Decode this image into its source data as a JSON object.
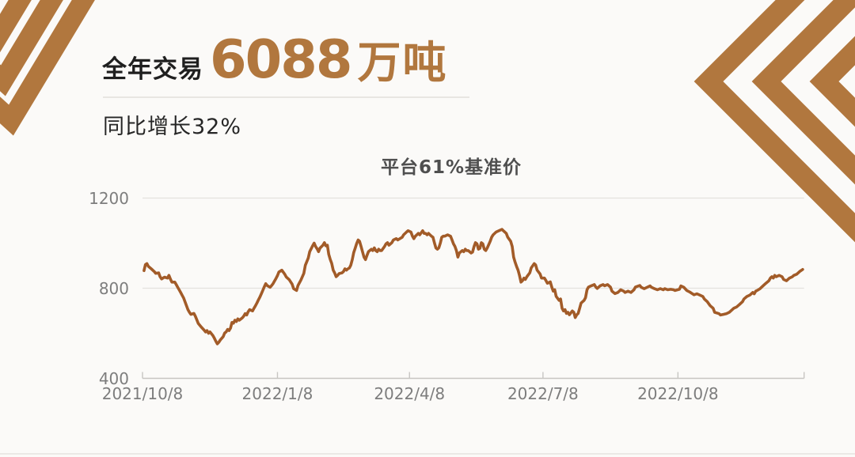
{
  "theme": {
    "accent_brown": "#b1773e",
    "line_brown": "#a25b28",
    "background": "#fbfaf8",
    "grid_color": "#e4e2de",
    "axis_color": "#c7c5c2",
    "tick_label_color": "#7d7d7d",
    "title_color": "#4f4f4f",
    "text_dark": "#1f1f1f"
  },
  "header": {
    "prefix": "全年交易",
    "big_number": "6088",
    "unit": "万吨",
    "subtitle": "同比增长32%"
  },
  "chart_data": {
    "type": "line",
    "title": "平台61%基准价",
    "x_unit": "days since 2021/10/8",
    "x_tick_labels": [
      "2021/10/8",
      "2022/1/8",
      "2022/4/8",
      "2022/7/8",
      "2022/10/8"
    ],
    "x_tick_days": [
      0,
      92,
      182,
      273,
      365
    ],
    "xlim_days": [
      0,
      451
    ],
    "y_ticks": [
      400,
      800,
      1200
    ],
    "ylim": [
      400,
      1200
    ],
    "grid": "horizontal",
    "legend": "none",
    "points": [
      [
        1,
        878
      ],
      [
        2,
        905
      ],
      [
        3,
        909
      ],
      [
        4,
        897
      ],
      [
        6,
        886
      ],
      [
        8,
        874
      ],
      [
        9,
        866
      ],
      [
        11,
        868
      ],
      [
        12,
        851
      ],
      [
        13,
        841
      ],
      [
        15,
        849
      ],
      [
        17,
        845
      ],
      [
        18,
        857
      ],
      [
        19,
        841
      ],
      [
        20,
        827
      ],
      [
        22,
        827
      ],
      [
        23,
        816
      ],
      [
        24,
        804
      ],
      [
        25,
        793
      ],
      [
        26,
        781
      ],
      [
        27,
        769
      ],
      [
        28,
        757
      ],
      [
        29,
        740
      ],
      [
        30,
        722
      ],
      [
        31,
        705
      ],
      [
        32,
        693
      ],
      [
        33,
        684
      ],
      [
        35,
        688
      ],
      [
        36,
        676
      ],
      [
        37,
        660
      ],
      [
        38,
        644
      ],
      [
        40,
        628
      ],
      [
        42,
        614
      ],
      [
        43,
        606
      ],
      [
        44,
        612
      ],
      [
        45,
        600
      ],
      [
        46,
        606
      ],
      [
        48,
        590
      ],
      [
        49,
        578
      ],
      [
        50,
        565
      ],
      [
        51,
        553
      ],
      [
        52,
        560
      ],
      [
        53,
        570
      ],
      [
        55,
        585
      ],
      [
        56,
        601
      ],
      [
        57,
        606
      ],
      [
        58,
        617
      ],
      [
        59,
        612
      ],
      [
        60,
        623
      ],
      [
        61,
        648
      ],
      [
        62,
        645
      ],
      [
        63,
        658
      ],
      [
        64,
        652
      ],
      [
        65,
        664
      ],
      [
        66,
        658
      ],
      [
        68,
        668
      ],
      [
        69,
        676
      ],
      [
        70,
        687
      ],
      [
        71,
        681
      ],
      [
        72,
        695
      ],
      [
        73,
        705
      ],
      [
        75,
        699
      ],
      [
        76,
        711
      ],
      [
        77,
        722
      ],
      [
        78,
        734
      ],
      [
        79,
        748
      ],
      [
        80,
        760
      ],
      [
        81,
        775
      ],
      [
        82,
        790
      ],
      [
        83,
        806
      ],
      [
        84,
        820
      ],
      [
        85,
        812
      ],
      [
        87,
        804
      ],
      [
        88,
        812
      ],
      [
        89,
        820
      ],
      [
        90,
        832
      ],
      [
        91,
        843
      ],
      [
        92,
        856
      ],
      [
        93,
        872
      ],
      [
        95,
        880
      ],
      [
        97,
        862
      ],
      [
        98,
        850
      ],
      [
        100,
        838
      ],
      [
        102,
        818
      ],
      [
        103,
        798
      ],
      [
        105,
        790
      ],
      [
        106,
        812
      ],
      [
        108,
        836
      ],
      [
        110,
        866
      ],
      [
        111,
        902
      ],
      [
        113,
        934
      ],
      [
        114,
        962
      ],
      [
        116,
        988
      ],
      [
        117,
        1000
      ],
      [
        118,
        985
      ],
      [
        119,
        975
      ],
      [
        120,
        962
      ],
      [
        121,
        978
      ],
      [
        123,
        991
      ],
      [
        124,
        1002
      ],
      [
        125,
        988
      ],
      [
        126,
        991
      ],
      [
        127,
        950
      ],
      [
        128,
        927
      ],
      [
        129,
        910
      ],
      [
        130,
        880
      ],
      [
        131,
        868
      ],
      [
        132,
        851
      ],
      [
        133,
        857
      ],
      [
        134,
        865
      ],
      [
        136,
        868
      ],
      [
        137,
        874
      ],
      [
        138,
        886
      ],
      [
        139,
        880
      ],
      [
        140,
        886
      ],
      [
        141,
        890
      ],
      [
        142,
        902
      ],
      [
        143,
        927
      ],
      [
        144,
        958
      ],
      [
        145,
        978
      ],
      [
        146,
        998
      ],
      [
        147,
        1014
      ],
      [
        148,
        1008
      ],
      [
        149,
        985
      ],
      [
        150,
        962
      ],
      [
        151,
        938
      ],
      [
        152,
        927
      ],
      [
        153,
        945
      ],
      [
        154,
        962
      ],
      [
        156,
        973
      ],
      [
        157,
        967
      ],
      [
        158,
        979
      ],
      [
        159,
        967
      ],
      [
        160,
        962
      ],
      [
        161,
        973
      ],
      [
        162,
        967
      ],
      [
        163,
        967
      ],
      [
        165,
        985
      ],
      [
        166,
        997
      ],
      [
        167,
        1002
      ],
      [
        168,
        991
      ],
      [
        170,
        1002
      ],
      [
        171,
        1014
      ],
      [
        173,
        1020
      ],
      [
        174,
        1014
      ],
      [
        177,
        1026
      ],
      [
        178,
        1037
      ],
      [
        180,
        1049
      ],
      [
        181,
        1055
      ],
      [
        183,
        1049
      ],
      [
        184,
        1031
      ],
      [
        185,
        1020
      ],
      [
        186,
        1031
      ],
      [
        188,
        1043
      ],
      [
        189,
        1037
      ],
      [
        191,
        1055
      ],
      [
        192,
        1043
      ],
      [
        193,
        1043
      ],
      [
        194,
        1037
      ],
      [
        195,
        1043
      ],
      [
        196,
        1037
      ],
      [
        197,
        1031
      ],
      [
        198,
        1026
      ],
      [
        199,
        1002
      ],
      [
        200,
        979
      ],
      [
        201,
        973
      ],
      [
        202,
        979
      ],
      [
        203,
        1000
      ],
      [
        204,
        1026
      ],
      [
        205,
        1031
      ],
      [
        206,
        1031
      ],
      [
        208,
        1037
      ],
      [
        210,
        1031
      ],
      [
        211,
        1014
      ],
      [
        212,
        997
      ],
      [
        213,
        985
      ],
      [
        214,
        967
      ],
      [
        215,
        938
      ],
      [
        216,
        956
      ],
      [
        218,
        967
      ],
      [
        219,
        962
      ],
      [
        220,
        973
      ],
      [
        221,
        967
      ],
      [
        222,
        967
      ],
      [
        224,
        956
      ],
      [
        225,
        960
      ],
      [
        226,
        985
      ],
      [
        227,
        1002
      ],
      [
        228,
        997
      ],
      [
        229,
        973
      ],
      [
        230,
        977
      ],
      [
        231,
        1002
      ],
      [
        232,
        997
      ],
      [
        233,
        973
      ],
      [
        234,
        967
      ],
      [
        235,
        979
      ],
      [
        237,
        1008
      ],
      [
        238,
        1026
      ],
      [
        239,
        1037
      ],
      [
        241,
        1049
      ],
      [
        243,
        1055
      ],
      [
        245,
        1061
      ],
      [
        246,
        1055
      ],
      [
        247,
        1049
      ],
      [
        248,
        1043
      ],
      [
        249,
        1026
      ],
      [
        251,
        1008
      ],
      [
        252,
        985
      ],
      [
        253,
        938
      ],
      [
        254,
        915
      ],
      [
        255,
        897
      ],
      [
        256,
        880
      ],
      [
        257,
        857
      ],
      [
        258,
        827
      ],
      [
        259,
        833
      ],
      [
        260,
        845
      ],
      [
        261,
        839
      ],
      [
        262,
        851
      ],
      [
        264,
        868
      ],
      [
        265,
        890
      ],
      [
        267,
        909
      ],
      [
        268,
        903
      ],
      [
        269,
        880
      ],
      [
        271,
        863
      ],
      [
        272,
        845
      ],
      [
        274,
        845
      ],
      [
        275,
        834
      ],
      [
        276,
        822
      ],
      [
        278,
        828
      ],
      [
        279,
        805
      ],
      [
        280,
        787
      ],
      [
        281,
        793
      ],
      [
        282,
        764
      ],
      [
        284,
        746
      ],
      [
        285,
        752
      ],
      [
        286,
        711
      ],
      [
        287,
        699
      ],
      [
        288,
        705
      ],
      [
        289,
        688
      ],
      [
        290,
        693
      ],
      [
        291,
        682
      ],
      [
        293,
        699
      ],
      [
        294,
        693
      ],
      [
        295,
        670
      ],
      [
        296,
        682
      ],
      [
        297,
        688
      ],
      [
        298,
        711
      ],
      [
        299,
        734
      ],
      [
        301,
        746
      ],
      [
        302,
        758
      ],
      [
        303,
        793
      ],
      [
        304,
        805
      ],
      [
        306,
        811
      ],
      [
        308,
        816
      ],
      [
        309,
        805
      ],
      [
        310,
        799
      ],
      [
        312,
        811
      ],
      [
        314,
        816
      ],
      [
        315,
        811
      ],
      [
        317,
        816
      ],
      [
        319,
        805
      ],
      [
        320,
        787
      ],
      [
        322,
        776
      ],
      [
        324,
        781
      ],
      [
        326,
        793
      ],
      [
        328,
        787
      ],
      [
        329,
        781
      ],
      [
        331,
        787
      ],
      [
        333,
        781
      ],
      [
        335,
        793
      ],
      [
        336,
        805
      ],
      [
        339,
        812
      ],
      [
        340,
        804
      ],
      [
        342,
        798
      ],
      [
        344,
        804
      ],
      [
        346,
        810
      ],
      [
        347,
        804
      ],
      [
        349,
        798
      ],
      [
        351,
        793
      ],
      [
        353,
        798
      ],
      [
        355,
        793
      ],
      [
        356,
        798
      ],
      [
        358,
        793
      ],
      [
        360,
        795
      ],
      [
        362,
        793
      ],
      [
        363,
        790
      ],
      [
        366,
        795
      ],
      [
        367,
        810
      ],
      [
        369,
        804
      ],
      [
        371,
        790
      ],
      [
        373,
        783
      ],
      [
        374,
        779
      ],
      [
        376,
        771
      ],
      [
        378,
        775
      ],
      [
        380,
        769
      ],
      [
        382,
        763
      ],
      [
        383,
        752
      ],
      [
        385,
        740
      ],
      [
        387,
        722
      ],
      [
        389,
        711
      ],
      [
        390,
        693
      ],
      [
        393,
        687
      ],
      [
        394,
        681
      ],
      [
        396,
        684
      ],
      [
        398,
        687
      ],
      [
        400,
        693
      ],
      [
        401,
        699
      ],
      [
        403,
        711
      ],
      [
        405,
        717
      ],
      [
        407,
        728
      ],
      [
        409,
        740
      ],
      [
        410,
        752
      ],
      [
        412,
        763
      ],
      [
        414,
        769
      ],
      [
        416,
        781
      ],
      [
        417,
        775
      ],
      [
        418,
        787
      ],
      [
        419,
        790
      ],
      [
        421,
        798
      ],
      [
        423,
        810
      ],
      [
        425,
        822
      ],
      [
        427,
        833
      ],
      [
        428,
        845
      ],
      [
        429,
        851
      ],
      [
        430,
        845
      ],
      [
        431,
        857
      ],
      [
        432,
        851
      ],
      [
        434,
        857
      ],
      [
        436,
        851
      ],
      [
        437,
        839
      ],
      [
        439,
        833
      ],
      [
        441,
        845
      ],
      [
        443,
        851
      ],
      [
        444,
        857
      ],
      [
        446,
        862
      ],
      [
        448,
        874
      ],
      [
        450,
        883
      ]
    ]
  }
}
